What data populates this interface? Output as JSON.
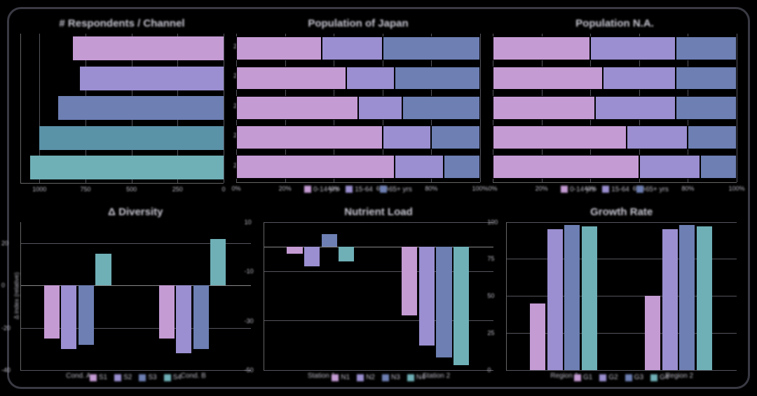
{
  "background_color": "#000000",
  "card_border_color": "#3a3a44",
  "text_color": "#c8c8d4",
  "palette": {
    "c1": "#c59bd4",
    "c2": "#9b8fd1",
    "c3": "#6d7fb3",
    "c4": "#5a92a8",
    "c5": "#6fb0b7"
  },
  "charts": {
    "respondents": {
      "type": "bar_horizontal_descending",
      "title": "# Respondents / Channel",
      "categories": [
        "2024",
        "2023",
        "2022",
        "2021",
        "2020"
      ],
      "values": [
        820,
        780,
        900,
        1000,
        1050
      ],
      "bar_colors": [
        "#c59bd4",
        "#9b8fd1",
        "#6d7fb3",
        "#5a92a8",
        "#6fb0b7"
      ],
      "xlim": [
        0,
        1100
      ],
      "xticks": [
        1000,
        750,
        500,
        250,
        0
      ],
      "grid_color": "#55555f",
      "title_fontsize": 15,
      "label_fontsize": 9
    },
    "pop_japan": {
      "type": "stacked_horizontal",
      "title": "Population of Japan",
      "rows": 5,
      "segments": [
        "0-14 yrs",
        "15-64",
        "65+ yrs"
      ],
      "segment_colors": [
        "#c59bd4",
        "#9b8fd1",
        "#6d7fb3"
      ],
      "data": [
        [
          35,
          25,
          40
        ],
        [
          45,
          20,
          35
        ],
        [
          50,
          18,
          32
        ],
        [
          60,
          20,
          20
        ],
        [
          65,
          20,
          15
        ]
      ],
      "xticks": [
        0,
        20,
        40,
        60,
        80,
        100
      ],
      "grid_color": "#55555f",
      "title_fontsize": 15,
      "label_fontsize": 9
    },
    "pop_na": {
      "type": "stacked_horizontal",
      "title": "Population N.A.",
      "rows": 5,
      "segments": [
        "0-14 yrs",
        "15-64",
        "65+ yrs"
      ],
      "segment_colors": [
        "#c59bd4",
        "#9b8fd1",
        "#6d7fb3"
      ],
      "data": [
        [
          40,
          35,
          25
        ],
        [
          45,
          30,
          25
        ],
        [
          42,
          33,
          25
        ],
        [
          55,
          25,
          20
        ],
        [
          60,
          25,
          15
        ]
      ],
      "xticks": [
        0,
        20,
        40,
        60,
        80,
        100
      ],
      "grid_color": "#55555f",
      "title_fontsize": 15,
      "label_fontsize": 9
    },
    "delta_diversity": {
      "type": "grouped_bar",
      "title": "Δ Diversity",
      "ylabel": "Δ index (relative)",
      "ylim": [
        -40,
        30
      ],
      "yticks": [
        -40,
        -20,
        0,
        20
      ],
      "groups": [
        "Cond. A",
        "Cond. B"
      ],
      "series": [
        "S1",
        "S2",
        "S3",
        "S4"
      ],
      "series_colors": [
        "#c59bd4",
        "#9b8fd1",
        "#6d7fb3",
        "#6fb0b7"
      ],
      "values": [
        [
          -25,
          -30,
          -28,
          15
        ],
        [
          -25,
          -32,
          -30,
          22
        ]
      ],
      "grid_color": "#55555f",
      "title_fontsize": 15,
      "label_fontsize": 9
    },
    "nutrient_load": {
      "type": "grouped_bar",
      "title": "Nutrient Load",
      "ylabel": "",
      "ylim": [
        -50,
        10
      ],
      "yticks": [
        -50,
        -30,
        -10,
        10
      ],
      "groups": [
        "Station 1",
        "Station 2"
      ],
      "series": [
        "N1",
        "N2",
        "N3",
        "N4"
      ],
      "series_colors": [
        "#c59bd4",
        "#9b8fd1",
        "#6d7fb3",
        "#6fb0b7"
      ],
      "values": [
        [
          -3,
          -8,
          5,
          -6
        ],
        [
          -28,
          -40,
          -45,
          -48
        ]
      ],
      "grid_color": "#55555f",
      "title_fontsize": 15,
      "label_fontsize": 9
    },
    "growth_rate": {
      "type": "grouped_bar",
      "title": "Growth Rate",
      "ylabel": "",
      "ylim": [
        0,
        100
      ],
      "yticks": [
        0,
        25,
        50,
        75,
        100
      ],
      "groups": [
        "Region 1",
        "Region 2"
      ],
      "series": [
        "G1",
        "G2",
        "G3",
        "G4"
      ],
      "series_colors": [
        "#c59bd4",
        "#9b8fd1",
        "#6d7fb3",
        "#6fb0b7"
      ],
      "values": [
        [
          45,
          95,
          98,
          97
        ],
        [
          50,
          95,
          98,
          97
        ]
      ],
      "grid_color": "#55555f",
      "title_fontsize": 15,
      "label_fontsize": 9
    }
  }
}
